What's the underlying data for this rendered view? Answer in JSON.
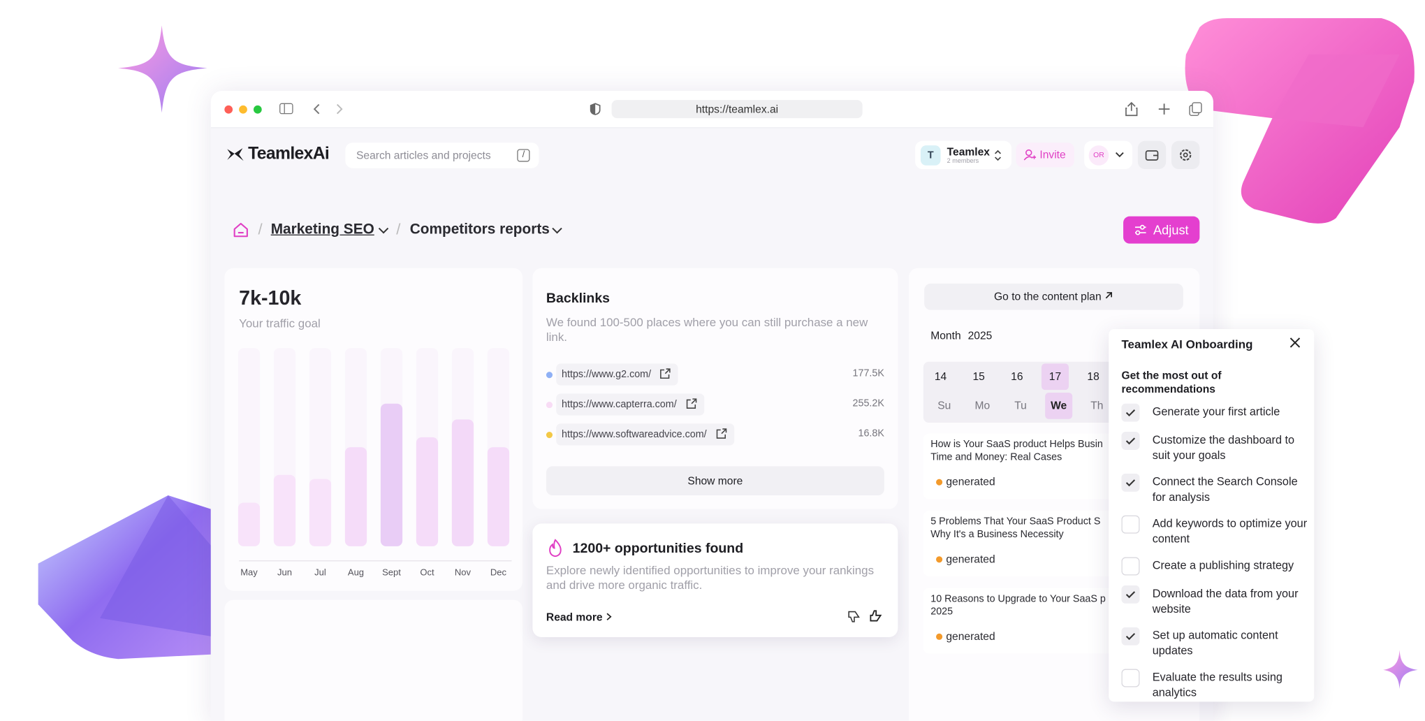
{
  "browser": {
    "url": "https://teamlex.ai"
  },
  "header": {
    "logo": "TeamlexAi",
    "search_placeholder": "Search articles and projects",
    "search_shortcut": "/",
    "workspace": {
      "initial": "T",
      "name": "Teamlex",
      "members": "2 members"
    },
    "invite": "Invite",
    "user_initials": "OR"
  },
  "breadcrumb": {
    "separator": "/",
    "items": [
      "Marketing SEO",
      "Competitors reports"
    ]
  },
  "adjust": "Adjust",
  "traffic_card": {
    "value": "7k-10k",
    "label": "Your traffic goal",
    "chart": {
      "type": "bar",
      "categories": [
        "May",
        "Jun",
        "Jul",
        "Aug",
        "Sept",
        "Oct",
        "Nov",
        "Dec"
      ],
      "values": [
        22,
        36,
        34,
        50,
        72,
        55,
        64,
        50
      ],
      "ylim": [
        0,
        100
      ],
      "colors": [
        "#f8e3fa",
        "#f8e3fa",
        "#f8e3fa",
        "#f5dcf9",
        "#e9cdf6",
        "#f5dcf9",
        "#f3d9f8",
        "#f5dcf9"
      ]
    }
  },
  "backlinks": {
    "title": "Backlinks",
    "description": "We found 100-500 places where you can still purchase a new link.",
    "links": [
      {
        "url": "https://www.g2.com/",
        "value": "177.5K",
        "color": "#8fb0f5"
      },
      {
        "url": "https://www.capterra.com/",
        "value": "255.2K",
        "color": "#f8dcf5"
      },
      {
        "url": "https://www.softwareadvice.com/",
        "value": "16.8K",
        "color": "#f3c846"
      }
    ],
    "button": "Show more"
  },
  "opportunities": {
    "title": "1200+ opportunities found",
    "description": "Explore newly identified opportunities to improve your rankings and drive more organic traffic.",
    "link": "Read more"
  },
  "content_plan": {
    "button": "Go to the content plan",
    "period": "Month",
    "year": "2025",
    "days": [
      {
        "date": "14",
        "weekday": "Su",
        "active": false
      },
      {
        "date": "15",
        "weekday": "Mo",
        "active": false
      },
      {
        "date": "16",
        "weekday": "Tu",
        "active": false
      },
      {
        "date": "17",
        "weekday": "We",
        "active": true
      },
      {
        "date": "18",
        "weekday": "Th",
        "active": false
      }
    ],
    "articles": [
      {
        "title_lines": [
          "How is Your SaaS product Helps Busin",
          "Time and Money: Real Cases"
        ],
        "status": "generated"
      },
      {
        "title_lines": [
          "5 Problems That Your SaaS Product S",
          "Why It's a Business Necessity"
        ],
        "status": "generated"
      },
      {
        "title_lines": [
          "10 Reasons to Upgrade to Your SaaS p",
          "2025"
        ],
        "status": "generated"
      }
    ]
  },
  "onboarding": {
    "title": "Teamlex AI Onboarding",
    "subtitle": "Get the most out of recommendations",
    "steps": [
      {
        "text": "Generate your first article",
        "done": true
      },
      {
        "text": "Customize the dashboard to suit your goals",
        "done": true
      },
      {
        "text": "Connect the Search Console for analysis",
        "done": true
      },
      {
        "text": "Add keywords to optimize your content",
        "done": false
      },
      {
        "text": "Create a publishing strategy",
        "done": false
      },
      {
        "text": "Download the data from your website",
        "done": true
      },
      {
        "text": "Set up automatic content updates",
        "done": true
      },
      {
        "text": "Evaluate the results using analytics",
        "done": false
      }
    ]
  }
}
